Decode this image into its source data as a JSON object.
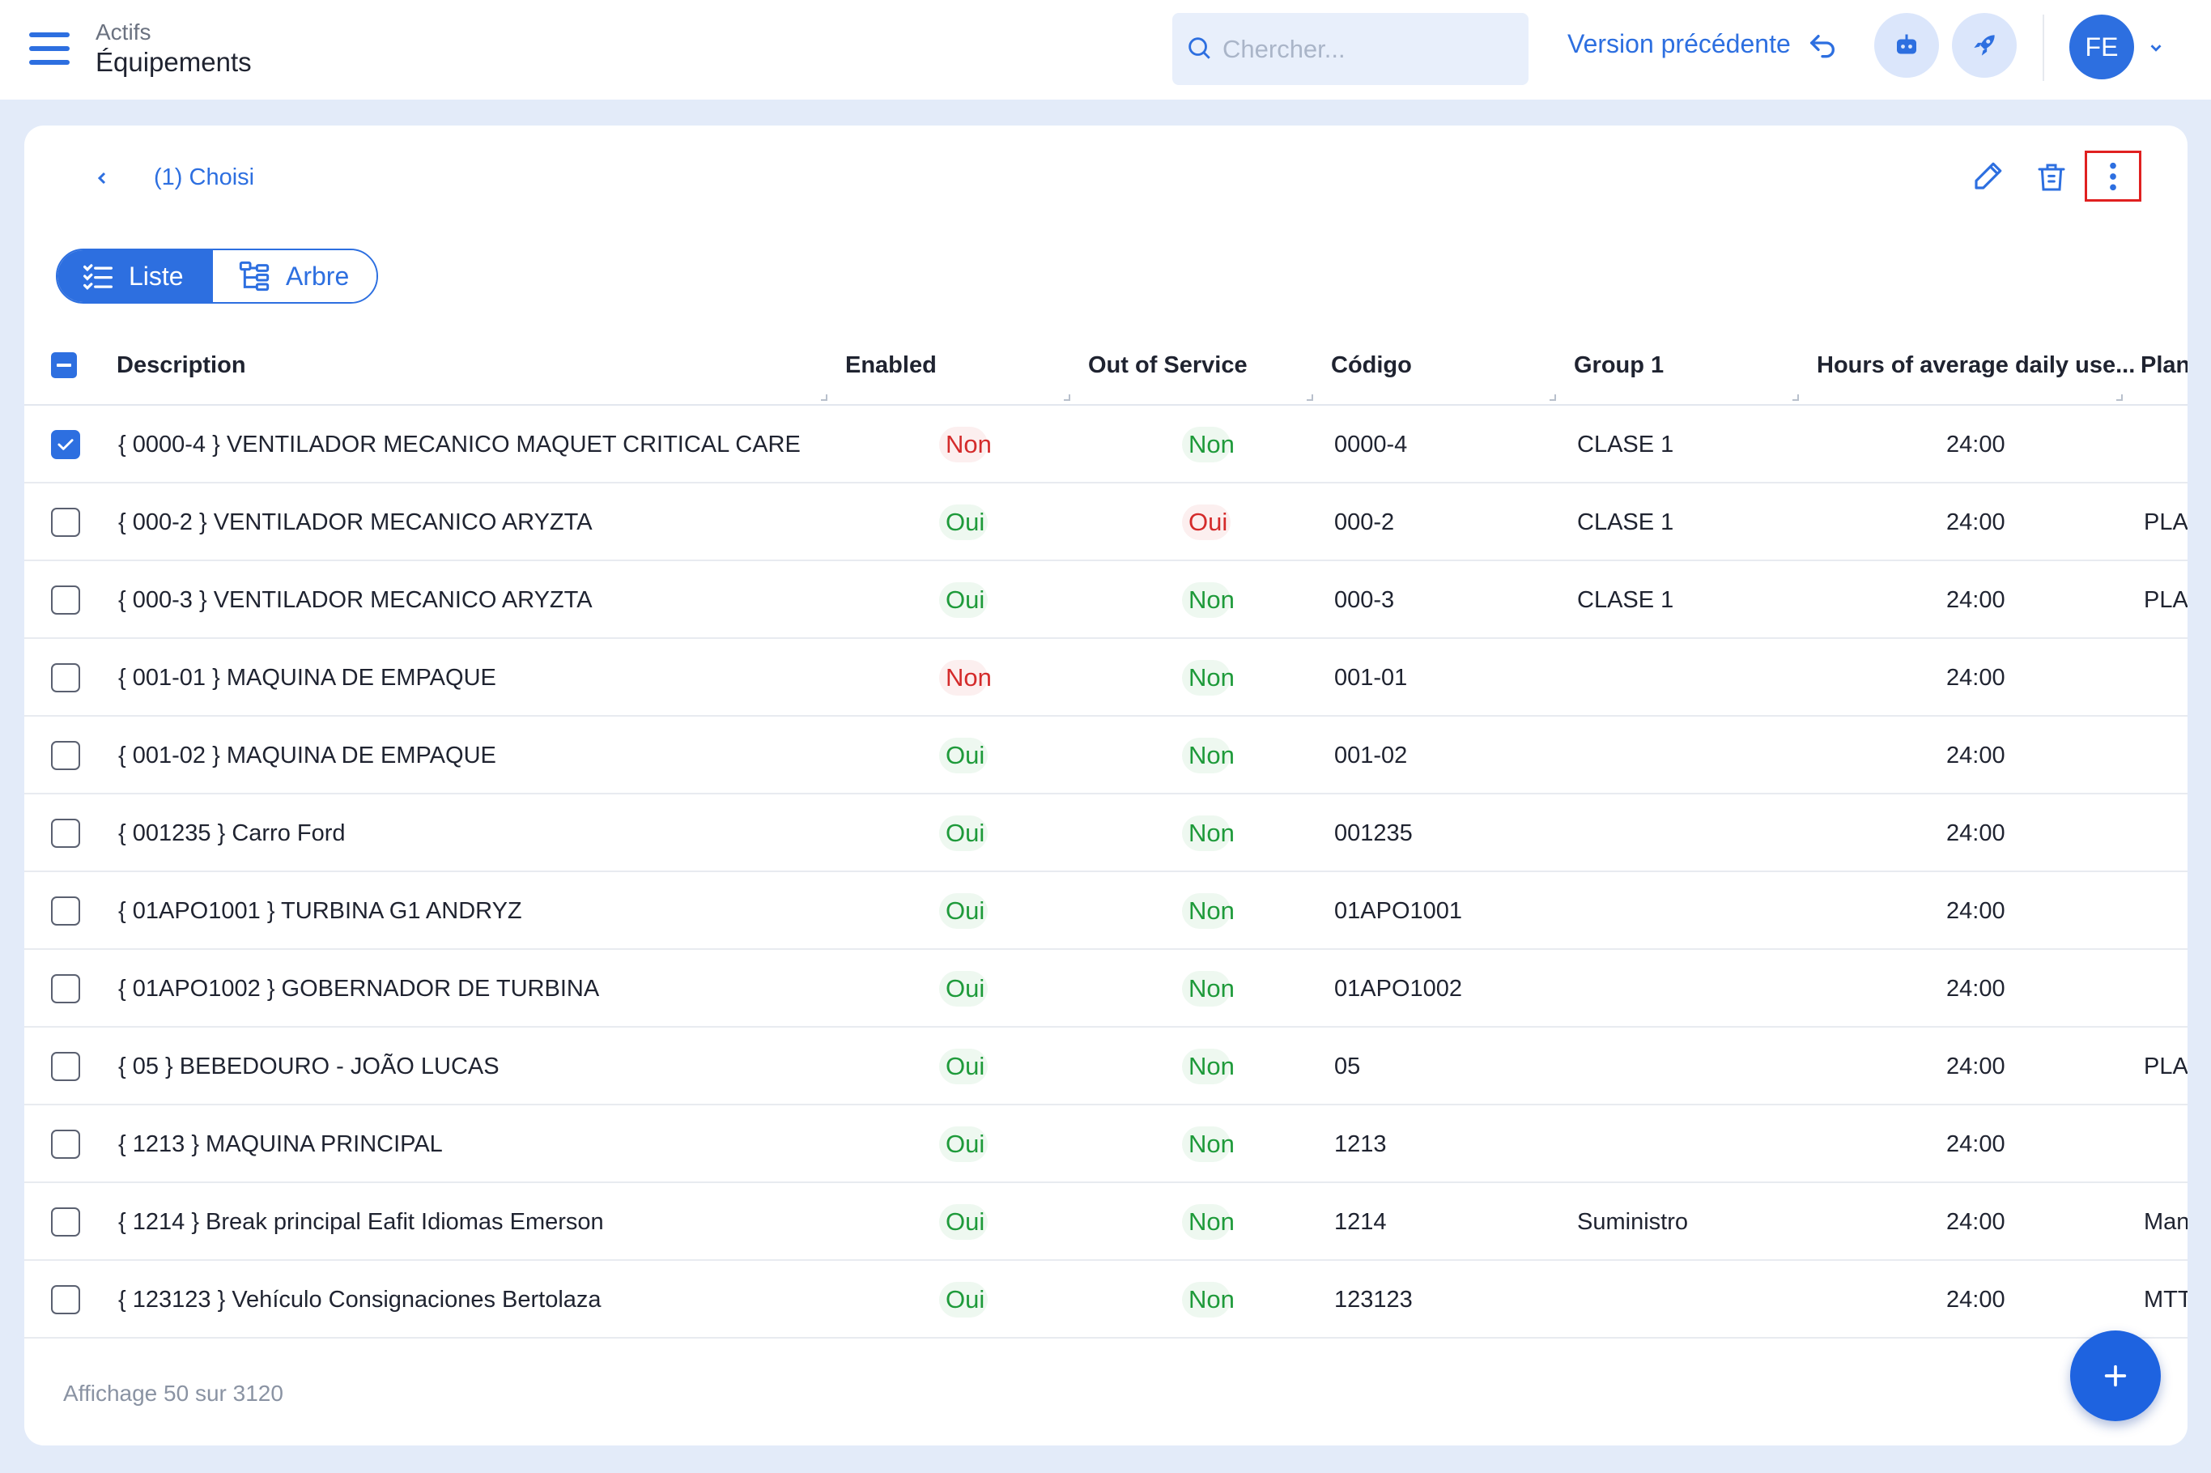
{
  "header": {
    "breadcrumb_parent": "Actifs",
    "page_title": "Équipements",
    "search_placeholder": "Chercher...",
    "version_label": "Version précédente",
    "avatar_initials": "FE"
  },
  "toolbar": {
    "selected_label": "(1) Choisi"
  },
  "view_toggle": {
    "list_label": "Liste",
    "tree_label": "Arbre"
  },
  "table": {
    "columns": [
      "Description",
      "Enabled",
      "Out of Service",
      "Código",
      "Group 1",
      "Hours of average daily use...",
      "Plan"
    ],
    "rows": [
      {
        "description": "{ 0000-4 } VENTILADOR MECANICO MAQUET CRITICAL CARE",
        "enabled": "Non",
        "out_of_service": "Non",
        "codigo": "0000-4",
        "group1": "CLASE 1",
        "hours": "24:00",
        "plan": "",
        "checked": true
      },
      {
        "description": "{ 000-2 } VENTILADOR MECANICO ARYZTA",
        "enabled": "Oui",
        "out_of_service": "Oui",
        "codigo": "000-2",
        "group1": "CLASE 1",
        "hours": "24:00",
        "plan": "PLA",
        "checked": false
      },
      {
        "description": "{ 000-3 } VENTILADOR MECANICO ARYZTA",
        "enabled": "Oui",
        "out_of_service": "Non",
        "codigo": "000-3",
        "group1": "CLASE 1",
        "hours": "24:00",
        "plan": "PLA",
        "checked": false
      },
      {
        "description": "{ 001-01 } MAQUINA DE EMPAQUE",
        "enabled": "Non",
        "out_of_service": "Non",
        "codigo": "001-01",
        "group1": "",
        "hours": "24:00",
        "plan": "",
        "checked": false
      },
      {
        "description": "{ 001-02 } MAQUINA DE EMPAQUE",
        "enabled": "Oui",
        "out_of_service": "Non",
        "codigo": "001-02",
        "group1": "",
        "hours": "24:00",
        "plan": "",
        "checked": false
      },
      {
        "description": "{ 001235 } Carro Ford",
        "enabled": "Oui",
        "out_of_service": "Non",
        "codigo": "001235",
        "group1": "",
        "hours": "24:00",
        "plan": "",
        "checked": false
      },
      {
        "description": "{ 01APO1001 } TURBINA G1 ANDRYZ",
        "enabled": "Oui",
        "out_of_service": "Non",
        "codigo": "01APO1001",
        "group1": "",
        "hours": "24:00",
        "plan": "",
        "checked": false
      },
      {
        "description": "{ 01APO1002 } GOBERNADOR DE TURBINA",
        "enabled": "Oui",
        "out_of_service": "Non",
        "codigo": "01APO1002",
        "group1": "",
        "hours": "24:00",
        "plan": "",
        "checked": false
      },
      {
        "description": "{ 05 } BEBEDOURO - JOÃO LUCAS",
        "enabled": "Oui",
        "out_of_service": "Non",
        "codigo": "05",
        "group1": "",
        "hours": "24:00",
        "plan": "PLA",
        "checked": false
      },
      {
        "description": "{ 1213 } MAQUINA PRINCIPAL",
        "enabled": "Oui",
        "out_of_service": "Non",
        "codigo": "1213",
        "group1": "",
        "hours": "24:00",
        "plan": "",
        "checked": false
      },
      {
        "description": "{ 1214 } Break principal Eafit Idiomas Emerson",
        "enabled": "Oui",
        "out_of_service": "Non",
        "codigo": "1214",
        "group1": "Suministro",
        "hours": "24:00",
        "plan": "Man",
        "checked": false
      },
      {
        "description": "{ 123123 } Vehículo Consignaciones Bertolaza",
        "enabled": "Oui",
        "out_of_service": "Non",
        "codigo": "123123",
        "group1": "",
        "hours": "24:00",
        "plan": "MTT",
        "checked": false
      }
    ]
  },
  "footer": {
    "count_label": "Affichage 50 sur 3120"
  },
  "colors": {
    "accent": "#2d6fe0",
    "yes_green": "#1e9a3a",
    "no_red": "#d42b2b",
    "highlight_border": "#e02020"
  },
  "icons": [
    "menu-icon",
    "search-icon",
    "undo-icon",
    "robot-icon",
    "rocket-icon",
    "chevron-down-icon",
    "chevron-left-icon",
    "pencil-icon",
    "trash-icon",
    "more-vertical-icon",
    "list-icon",
    "tree-icon",
    "checkbox-icon",
    "plus-icon"
  ]
}
